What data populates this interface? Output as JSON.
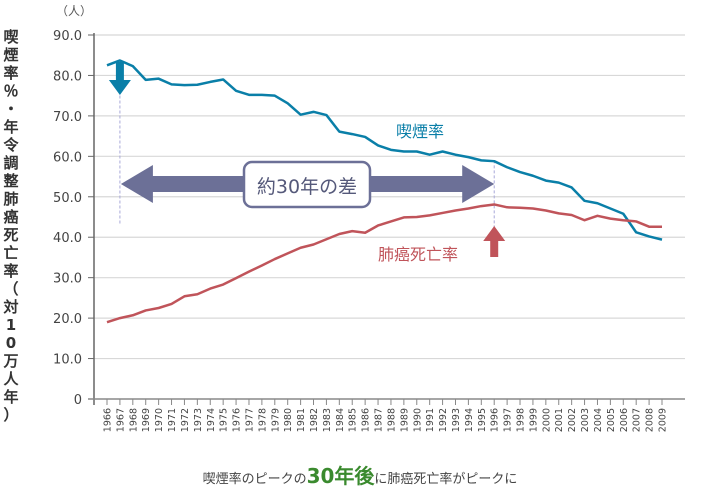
{
  "chart_data": {
    "type": "line",
    "title": "",
    "unit_label": "（人）",
    "ylabel": "喫煙率％・年令調整肺癌死亡率（対10万人年）",
    "xlabel": "",
    "ylim": [
      0,
      90
    ],
    "yticks": [
      "0",
      "10.0",
      "20.0",
      "30.0",
      "40.0",
      "50.0",
      "60.0",
      "70.0",
      "80.0",
      "90.0"
    ],
    "grid": true,
    "categories": [
      "1966",
      "1967",
      "1968",
      "1969",
      "1970",
      "1971",
      "1972",
      "1973",
      "1974",
      "1975",
      "1976",
      "1977",
      "1978",
      "1979",
      "1980",
      "1981",
      "1982",
      "1983",
      "1984",
      "1985",
      "1986",
      "1987",
      "1988",
      "1989",
      "1990",
      "1991",
      "1992",
      "1993",
      "1994",
      "1995",
      "1996",
      "1997",
      "1998",
      "1999",
      "2000",
      "2001",
      "2002",
      "2003",
      "2004",
      "2005",
      "2006",
      "2007",
      "2008",
      "2009"
    ],
    "series": [
      {
        "name": "喫煙率",
        "color": "#0a7fa8",
        "values": [
          82.5,
          83.7,
          82.3,
          78.9,
          79.2,
          77.8,
          77.6,
          77.7,
          78.4,
          79.0,
          76.2,
          75.2,
          75.2,
          75.0,
          73.1,
          70.3,
          71.0,
          70.2,
          66.1,
          65.5,
          64.8,
          62.7,
          61.6,
          61.2,
          61.2,
          60.4,
          61.2,
          60.4,
          59.8,
          59.0,
          58.8,
          57.3,
          56.1,
          55.2,
          54.0,
          53.5,
          52.3,
          49.0,
          48.4,
          47.1,
          45.8,
          41.2,
          40.2,
          39.4
        ]
      },
      {
        "name": "肺癌死亡率",
        "color": "#c0545a",
        "values": [
          19.0,
          20.0,
          20.7,
          21.9,
          22.5,
          23.5,
          25.4,
          25.9,
          27.3,
          28.3,
          29.9,
          31.5,
          33.0,
          34.6,
          36.0,
          37.4,
          38.2,
          39.5,
          40.8,
          41.5,
          41.1,
          42.9,
          43.9,
          44.9,
          45.0,
          45.4,
          46.0,
          46.6,
          47.1,
          47.7,
          48.1,
          47.4,
          47.3,
          47.1,
          46.6,
          45.9,
          45.5,
          44.2,
          45.3,
          44.6,
          44.2,
          43.9,
          42.6,
          42.6
        ]
      }
    ],
    "annotations": [
      {
        "text": "喫煙率",
        "color": "#0a7fa8"
      },
      {
        "text": "肺癌死亡率",
        "color": "#c0545a"
      },
      {
        "text": "約30年の差",
        "from": "1967",
        "to": "1996"
      }
    ]
  },
  "caption": {
    "pre": "喫煙率のピークの",
    "big": "30年後",
    "post": "に肺癌死亡率がピークに"
  },
  "colors": {
    "smoking": "#0a7fa8",
    "cancer": "#c0545a",
    "arrow": "#6c7097",
    "accent": "#3a8a2e"
  }
}
